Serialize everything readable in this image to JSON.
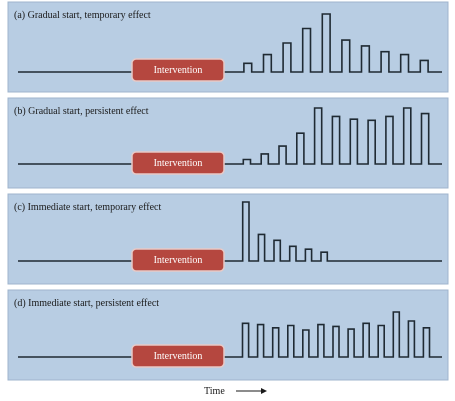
{
  "panels": [
    {
      "label": "(a) Gradual start, temporary effect",
      "intervention": "Intervention",
      "spikes": [
        0.15,
        0.3,
        0.5,
        0.75,
        1.0,
        0.55,
        0.45,
        0.35,
        0.3,
        0.2
      ]
    },
    {
      "label": "(b) Gradual start, persistent effect",
      "intervention": "Intervention",
      "spikes": [
        0.08,
        0.18,
        0.32,
        0.55,
        1.0,
        0.85,
        0.8,
        0.78,
        0.85,
        1.0,
        0.9
      ]
    },
    {
      "label": "(c) Immediate start, temporary effect",
      "intervention": "Intervention",
      "spikes": [
        1.0,
        0.45,
        0.35,
        0.25,
        0.2,
        0.15
      ]
    },
    {
      "label": "(d) Immediate start, persistent effect",
      "intervention": "Intervention",
      "spikes": [
        0.75,
        0.72,
        0.65,
        0.7,
        0.6,
        0.72,
        0.68,
        0.62,
        0.75,
        0.7,
        1.0,
        0.8,
        0.65
      ]
    }
  ],
  "axis": {
    "label": "Time"
  }
}
